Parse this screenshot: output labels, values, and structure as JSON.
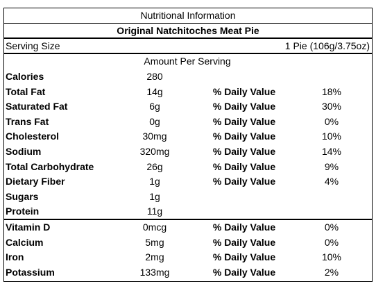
{
  "header": {
    "title": "Nutritional Information",
    "product": "Original Natchitoches Meat Pie"
  },
  "serving": {
    "label": "Serving Size",
    "value": "1 Pie (106g/3.75oz)"
  },
  "amount_header": "Amount Per Serving",
  "nutrients": [
    {
      "name": "Calories",
      "amount": "280"
    },
    {
      "name": "Total Fat",
      "amount": "14g",
      "dv_label": "% Daily Value",
      "dv": "18%"
    },
    {
      "name": "Saturated Fat",
      "amount": "6g",
      "dv_label": "% Daily Value",
      "dv": "30%"
    },
    {
      "name": "Trans Fat",
      "amount": "0g",
      "dv_label": "% Daily Value",
      "dv": "0%"
    },
    {
      "name": "Cholesterol",
      "amount": "30mg",
      "dv_label": "% Daily Value",
      "dv": "10%"
    },
    {
      "name": "Sodium",
      "amount": "320mg",
      "dv_label": "% Daily Value",
      "dv": "14%"
    },
    {
      "name": "Total Carbohydrate",
      "amount": "26g",
      "dv_label": "% Daily Value",
      "dv": "9%"
    },
    {
      "name": "Dietary Fiber",
      "amount": "1g",
      "dv_label": "% Daily Value",
      "dv": "4%"
    },
    {
      "name": "Sugars",
      "amount": "1g"
    },
    {
      "name": "Protein",
      "amount": "11g"
    }
  ],
  "vitamins": [
    {
      "name": "Vitamin D",
      "amount": "0mcg",
      "dv_label": "% Daily Value",
      "dv": "0%"
    },
    {
      "name": "Calcium",
      "amount": "5mg",
      "dv_label": "% Daily Value",
      "dv": "0%"
    },
    {
      "name": "Iron",
      "amount": "2mg",
      "dv_label": "% Daily Value",
      "dv": "10%"
    },
    {
      "name": "Potassium",
      "amount": "133mg",
      "dv_label": "% Daily Value",
      "dv": "2%"
    }
  ]
}
